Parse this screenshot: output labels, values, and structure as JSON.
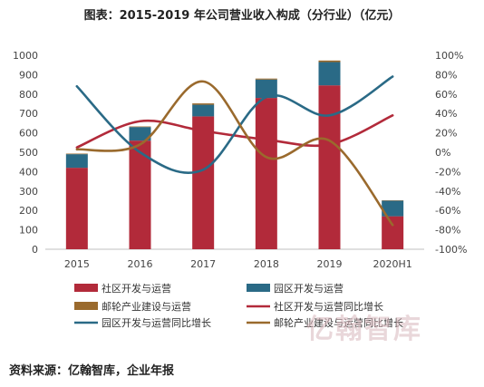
{
  "title": "图表：2015-2019 年公司营业收入构成（分行业）（亿元）",
  "source": "资料来源：亿翰智库，企业年报",
  "watermark": "亿翰智库",
  "colors": {
    "community": "#b22a3a",
    "park": "#2a6a86",
    "cruise": "#9a6a2d",
    "community_growth": "#b22a3a",
    "park_growth": "#2a6a86",
    "cruise_growth": "#9a6a2d"
  },
  "chart_data": {
    "type": "bar",
    "categories": [
      "2015",
      "2016",
      "2017",
      "2018",
      "2019",
      "2020H1"
    ],
    "ylim_left": [
      0,
      1000
    ],
    "yticks_left": [
      "0",
      "100",
      "200",
      "300",
      "400",
      "500",
      "600",
      "700",
      "800",
      "900",
      "1000"
    ],
    "ylim_right": [
      -100,
      100
    ],
    "yticks_right": [
      "-100%",
      "-80%",
      "-60%",
      "-40%",
      "-20%",
      "0%",
      "20%",
      "40%",
      "60%",
      "80%",
      "100%"
    ],
    "bar_series": [
      {
        "name": "社区开发与运营",
        "values": [
          420,
          560,
          685,
          780,
          845,
          170
        ]
      },
      {
        "name": "园区开发与运营",
        "values": [
          70,
          70,
          60,
          95,
          120,
          80
        ]
      },
      {
        "name": "邮轮产业建设与运营",
        "values": [
          3,
          3,
          7,
          5,
          8,
          2
        ]
      }
    ],
    "line_series": [
      {
        "name": "社区开发与运营同比增长",
        "values": [
          5,
          32,
          22,
          13,
          8,
          38
        ]
      },
      {
        "name": "园区开发与运营同比增长",
        "values": [
          68,
          0,
          -18,
          57,
          38,
          78
        ]
      },
      {
        "name": "邮轮产业建设与运营同比增长",
        "values": [
          3,
          8,
          73,
          -5,
          12,
          -75
        ]
      }
    ],
    "legend": [
      {
        "label": "社区开发与运营",
        "kind": "bar",
        "color": "#b22a3a"
      },
      {
        "label": "园区开发与运营",
        "kind": "bar",
        "color": "#2a6a86"
      },
      {
        "label": "邮轮产业建设与运营",
        "kind": "bar",
        "color": "#9a6a2d"
      },
      {
        "label": "社区开发与运营同比增长",
        "kind": "line",
        "color": "#b22a3a"
      },
      {
        "label": "园区开发与运营同比增长",
        "kind": "line",
        "color": "#2a6a86"
      },
      {
        "label": "邮轮产业建设与运营同比增长",
        "kind": "line",
        "color": "#9a6a2d"
      }
    ],
    "legend_position": "bottom"
  }
}
